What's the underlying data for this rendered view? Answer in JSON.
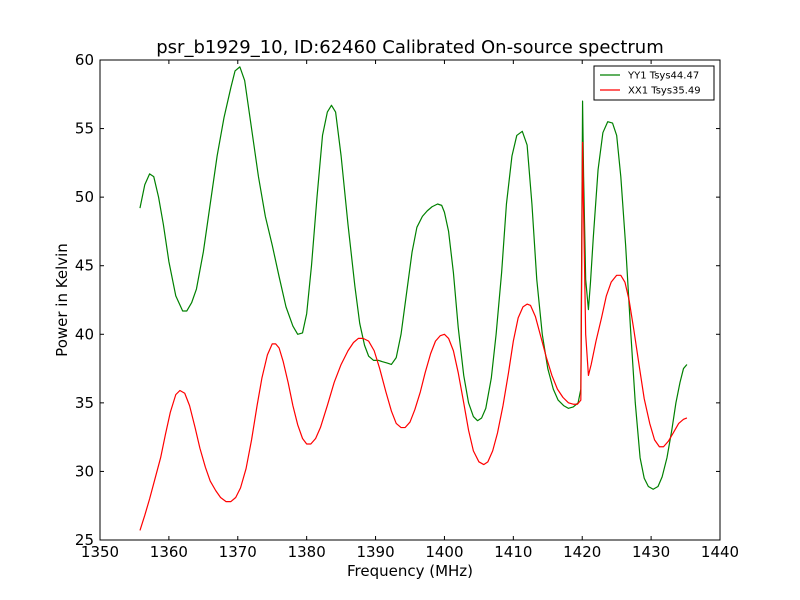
{
  "chart_data": {
    "type": "line",
    "title": "psr_b1929_10, ID:62460 Calibrated On-source spectrum",
    "xlabel": "Frequency (MHz)",
    "ylabel": "Power in Kelvin",
    "xlim": [
      1350,
      1440
    ],
    "ylim": [
      25,
      60
    ],
    "xticks": [
      1350,
      1360,
      1370,
      1380,
      1390,
      1400,
      1410,
      1420,
      1430,
      1440
    ],
    "yticks": [
      25,
      30,
      35,
      40,
      45,
      50,
      55,
      60
    ],
    "grid": false,
    "legend_position": "top-right",
    "series": [
      {
        "name": "YY1 Tsys44.47",
        "color": "#008000",
        "x": [
          1355.8,
          1356.5,
          1357.2,
          1357.8,
          1358.5,
          1359.2,
          1360.0,
          1361.0,
          1362.0,
          1362.6,
          1363.3,
          1364.0,
          1365.0,
          1366.0,
          1367.0,
          1368.0,
          1369.0,
          1369.6,
          1370.3,
          1371.0,
          1372.0,
          1373.0,
          1374.0,
          1375.0,
          1376.0,
          1377.0,
          1378.0,
          1378.7,
          1379.4,
          1380.0,
          1380.7,
          1381.5,
          1382.3,
          1383.0,
          1383.6,
          1384.2,
          1385.0,
          1386.0,
          1387.0,
          1387.7,
          1388.4,
          1389.0,
          1389.7,
          1390.4,
          1391.0,
          1391.7,
          1392.3,
          1393.0,
          1393.7,
          1394.5,
          1395.3,
          1396.0,
          1396.8,
          1397.5,
          1398.2,
          1399.0,
          1399.6,
          1400.0,
          1400.6,
          1401.3,
          1402.0,
          1402.8,
          1403.5,
          1404.2,
          1404.8,
          1405.4,
          1406.0,
          1406.8,
          1407.5,
          1408.3,
          1409.0,
          1409.8,
          1410.5,
          1411.3,
          1412.0,
          1412.7,
          1413.4,
          1414.2,
          1415.0,
          1415.8,
          1416.5,
          1417.3,
          1418.0,
          1418.7,
          1419.4,
          1419.8,
          1420.05,
          1420.2,
          1420.5,
          1420.9,
          1421.2,
          1421.6,
          1422.3,
          1423.0,
          1423.7,
          1424.4,
          1425.0,
          1425.6,
          1426.3,
          1427.0,
          1427.7,
          1428.4,
          1429.0,
          1429.6,
          1430.3,
          1431.0,
          1431.6,
          1432.3,
          1433.0,
          1433.6,
          1434.2,
          1434.7,
          1435.2
        ],
        "values": [
          49.2,
          50.9,
          51.7,
          51.5,
          50.0,
          48.0,
          45.3,
          42.8,
          41.7,
          41.7,
          42.3,
          43.3,
          46.0,
          49.5,
          53.0,
          55.8,
          58.0,
          59.2,
          59.5,
          58.5,
          55.0,
          51.5,
          48.6,
          46.5,
          44.2,
          42.0,
          40.6,
          40.0,
          40.1,
          41.5,
          45.0,
          50.0,
          54.5,
          56.2,
          56.7,
          56.2,
          53.0,
          48.0,
          43.5,
          40.8,
          39.2,
          38.4,
          38.1,
          38.1,
          38.0,
          37.9,
          37.8,
          38.3,
          40.0,
          43.0,
          46.0,
          47.8,
          48.6,
          49.0,
          49.3,
          49.5,
          49.4,
          48.9,
          47.5,
          44.5,
          40.5,
          37.0,
          35.0,
          34.0,
          33.7,
          33.9,
          34.6,
          36.8,
          40.0,
          44.5,
          49.5,
          53.0,
          54.5,
          54.8,
          53.8,
          49.5,
          44.0,
          40.0,
          37.5,
          36.0,
          35.2,
          34.8,
          34.6,
          34.7,
          35.0,
          36.0,
          57.0,
          51.5,
          44.0,
          41.8,
          43.8,
          47.0,
          52.0,
          54.7,
          55.5,
          55.4,
          54.5,
          51.5,
          46.5,
          40.5,
          35.0,
          31.0,
          29.5,
          28.9,
          28.7,
          28.9,
          29.6,
          31.0,
          33.0,
          35.0,
          36.5,
          37.5,
          37.8
        ]
      },
      {
        "name": "XX1 Tsys35.49",
        "color": "#ff0000",
        "x": [
          1355.8,
          1356.5,
          1357.2,
          1358.0,
          1358.8,
          1359.5,
          1360.2,
          1361.0,
          1361.6,
          1362.3,
          1363.0,
          1363.8,
          1364.5,
          1365.3,
          1366.0,
          1366.8,
          1367.5,
          1368.3,
          1369.0,
          1369.7,
          1370.4,
          1371.2,
          1372.0,
          1372.8,
          1373.5,
          1374.3,
          1375.0,
          1375.5,
          1376.0,
          1376.6,
          1377.3,
          1378.0,
          1378.7,
          1379.4,
          1380.0,
          1380.6,
          1381.3,
          1382.0,
          1383.0,
          1384.0,
          1385.0,
          1386.0,
          1386.8,
          1387.5,
          1388.2,
          1389.0,
          1389.8,
          1390.6,
          1391.5,
          1392.3,
          1393.0,
          1393.7,
          1394.3,
          1395.0,
          1395.7,
          1396.5,
          1397.2,
          1398.0,
          1398.7,
          1399.4,
          1400.0,
          1400.6,
          1401.3,
          1402.0,
          1402.8,
          1403.5,
          1404.2,
          1405.0,
          1405.7,
          1406.3,
          1407.0,
          1407.7,
          1408.5,
          1409.3,
          1410.0,
          1410.7,
          1411.4,
          1412.0,
          1412.5,
          1413.2,
          1414.0,
          1414.8,
          1415.6,
          1416.4,
          1417.2,
          1418.0,
          1418.7,
          1419.3,
          1419.8,
          1420.05,
          1420.2,
          1420.5,
          1420.9,
          1421.3,
          1422.0,
          1422.8,
          1423.5,
          1424.2,
          1425.0,
          1425.6,
          1426.2,
          1426.8,
          1427.5,
          1428.3,
          1429.0,
          1429.8,
          1430.5,
          1431.2,
          1431.8,
          1432.5,
          1433.2,
          1434.0,
          1434.7,
          1435.2
        ],
        "values": [
          25.7,
          26.8,
          28.0,
          29.5,
          31.0,
          32.7,
          34.3,
          35.6,
          35.9,
          35.7,
          34.8,
          33.2,
          31.7,
          30.3,
          29.3,
          28.6,
          28.1,
          27.8,
          27.8,
          28.1,
          28.8,
          30.2,
          32.3,
          34.8,
          36.8,
          38.5,
          39.3,
          39.3,
          39.0,
          38.0,
          36.5,
          34.8,
          33.4,
          32.4,
          32.0,
          32.0,
          32.4,
          33.2,
          34.8,
          36.5,
          37.8,
          38.8,
          39.4,
          39.7,
          39.7,
          39.5,
          38.8,
          37.5,
          35.8,
          34.4,
          33.5,
          33.2,
          33.2,
          33.6,
          34.5,
          35.8,
          37.2,
          38.6,
          39.5,
          39.9,
          40.0,
          39.7,
          38.8,
          37.2,
          35.0,
          33.0,
          31.5,
          30.7,
          30.5,
          30.7,
          31.5,
          32.8,
          34.8,
          37.2,
          39.5,
          41.2,
          42.0,
          42.2,
          42.1,
          41.3,
          39.8,
          38.3,
          37.0,
          36.0,
          35.4,
          35.0,
          34.9,
          34.9,
          35.2,
          54.0,
          49.0,
          40.0,
          37.0,
          37.8,
          39.5,
          41.2,
          42.8,
          43.8,
          44.3,
          44.3,
          43.8,
          42.5,
          40.3,
          37.6,
          35.3,
          33.5,
          32.3,
          31.8,
          31.8,
          32.2,
          32.8,
          33.5,
          33.8,
          33.9
        ]
      }
    ]
  }
}
